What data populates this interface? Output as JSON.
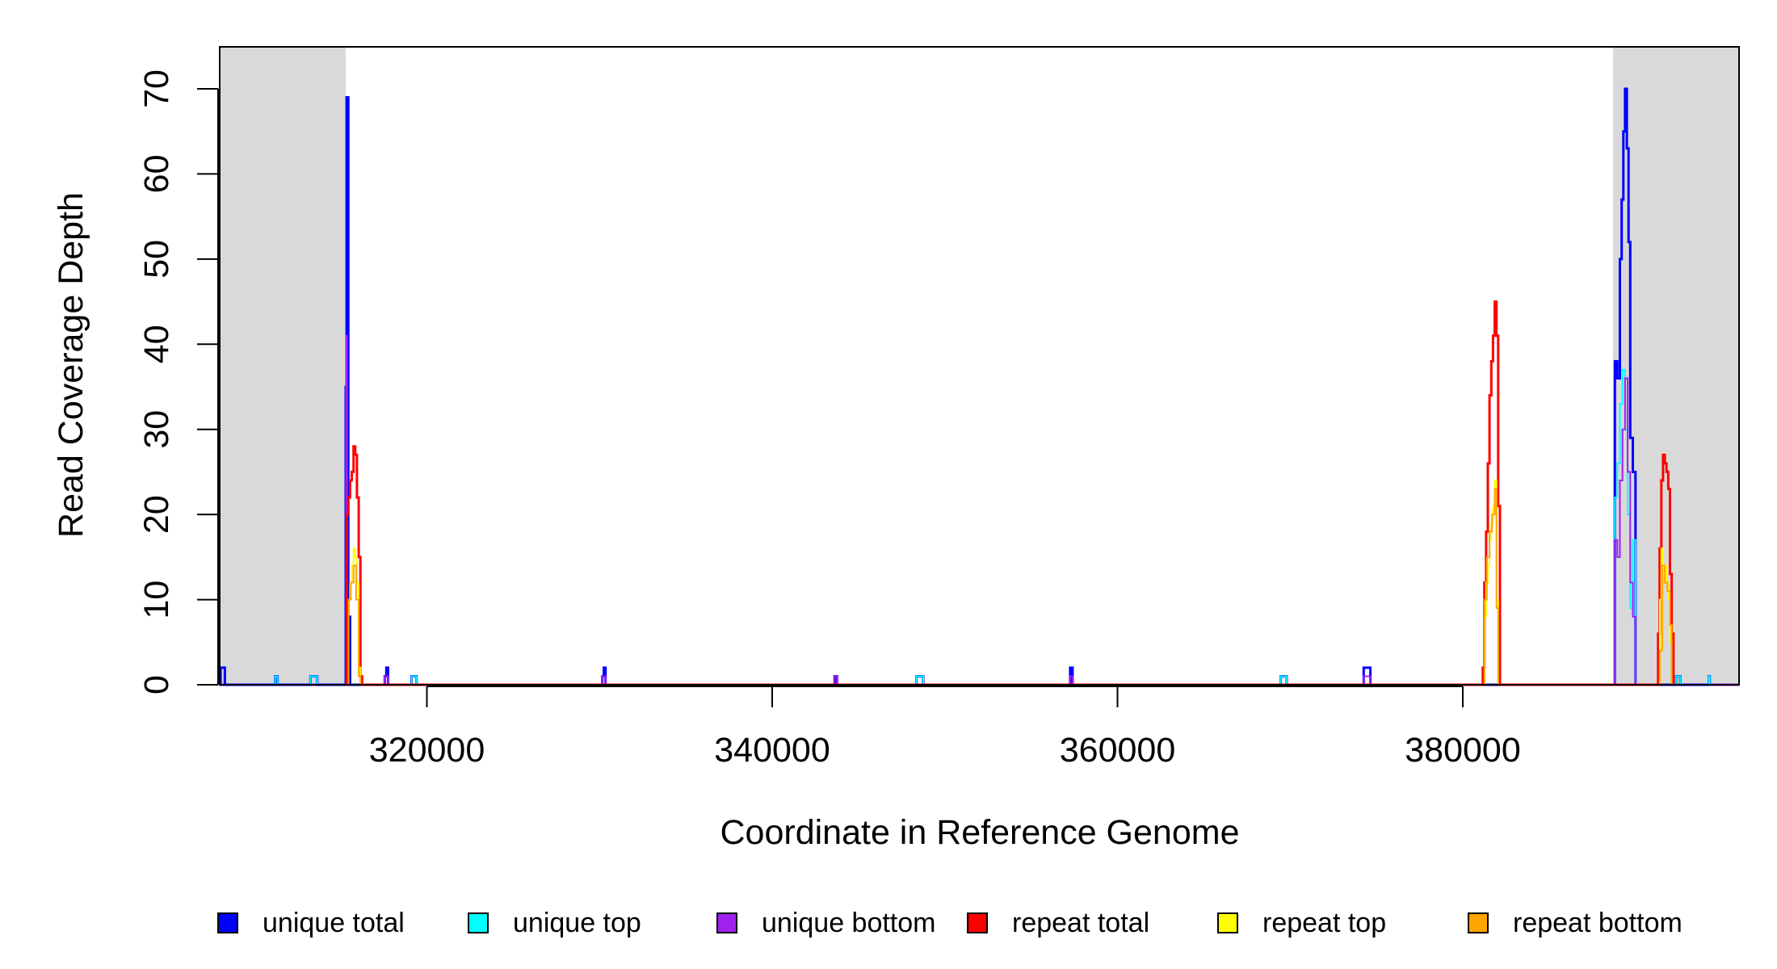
{
  "chart_data": {
    "type": "line",
    "title": "",
    "xlabel": "Coordinate in Reference Genome",
    "ylabel": "Read Coverage Depth",
    "xlim": [
      308000,
      396000
    ],
    "ylim": [
      0,
      75
    ],
    "x_ticks": [
      320000,
      340000,
      360000,
      380000
    ],
    "x_tick_labels": [
      "320000",
      "340000",
      "360000",
      "380000"
    ],
    "y_ticks": [
      0,
      10,
      20,
      30,
      40,
      50,
      60,
      70
    ],
    "y_tick_labels": [
      "0",
      "10",
      "20",
      "30",
      "40",
      "50",
      "60",
      "70"
    ],
    "grid": false,
    "legend_position": "bottom",
    "shaded_regions": [
      {
        "x0": 308000,
        "x1": 315300,
        "color": "#d9d9d9"
      },
      {
        "x0": 388700,
        "x1": 396000,
        "color": "#d9d9d9"
      }
    ],
    "series": [
      {
        "name": "unique total",
        "color": "#0000ff",
        "width": 3,
        "points": [
          [
            308000,
            0
          ],
          [
            308050,
            2
          ],
          [
            308300,
            0
          ],
          [
            311200,
            0
          ],
          [
            311210,
            1
          ],
          [
            311350,
            0
          ],
          [
            313250,
            0
          ],
          [
            313260,
            1
          ],
          [
            313650,
            0
          ],
          [
            315250,
            0
          ],
          [
            315300,
            35
          ],
          [
            315350,
            69
          ],
          [
            315450,
            8
          ],
          [
            315550,
            0
          ],
          [
            317550,
            0
          ],
          [
            317560,
            1
          ],
          [
            317650,
            2
          ],
          [
            317750,
            0
          ],
          [
            319100,
            0
          ],
          [
            319110,
            1
          ],
          [
            319400,
            0
          ],
          [
            330150,
            0
          ],
          [
            330160,
            1
          ],
          [
            330250,
            2
          ],
          [
            330350,
            0
          ],
          [
            343600,
            0
          ],
          [
            343610,
            1
          ],
          [
            343750,
            0
          ],
          [
            348350,
            0
          ],
          [
            348360,
            1
          ],
          [
            348750,
            0
          ],
          [
            357250,
            0
          ],
          [
            357260,
            2
          ],
          [
            357400,
            0
          ],
          [
            369450,
            0
          ],
          [
            369460,
            1
          ],
          [
            369800,
            0
          ],
          [
            374250,
            0
          ],
          [
            374260,
            2
          ],
          [
            374650,
            0
          ],
          [
            388800,
            0
          ],
          [
            388810,
            38
          ],
          [
            388950,
            36
          ],
          [
            389100,
            50
          ],
          [
            389200,
            57
          ],
          [
            389300,
            65
          ],
          [
            389400,
            70
          ],
          [
            389500,
            63
          ],
          [
            389600,
            52
          ],
          [
            389700,
            29
          ],
          [
            389850,
            25
          ],
          [
            390000,
            0
          ],
          [
            392350,
            0
          ],
          [
            392360,
            1
          ],
          [
            392600,
            0
          ],
          [
            394250,
            0
          ],
          [
            394260,
            1
          ],
          [
            394300,
            0
          ]
        ]
      },
      {
        "name": "unique top",
        "color": "#00ffff",
        "width": 2,
        "points": [
          [
            311200,
            0
          ],
          [
            311210,
            1
          ],
          [
            311350,
            0
          ],
          [
            313250,
            0
          ],
          [
            313260,
            1
          ],
          [
            313650,
            0
          ],
          [
            315300,
            0
          ],
          [
            315320,
            8
          ],
          [
            315380,
            5
          ],
          [
            315450,
            0
          ],
          [
            319100,
            0
          ],
          [
            319110,
            1
          ],
          [
            319400,
            0
          ],
          [
            348350,
            0
          ],
          [
            348360,
            1
          ],
          [
            348750,
            0
          ],
          [
            369450,
            0
          ],
          [
            369460,
            1
          ],
          [
            369800,
            0
          ],
          [
            388800,
            0
          ],
          [
            388810,
            22
          ],
          [
            388950,
            26
          ],
          [
            389100,
            33
          ],
          [
            389250,
            37
          ],
          [
            389400,
            30
          ],
          [
            389550,
            20
          ],
          [
            389700,
            9
          ],
          [
            389850,
            17
          ],
          [
            390000,
            0
          ],
          [
            392350,
            0
          ],
          [
            392360,
            1
          ],
          [
            392600,
            0
          ],
          [
            394250,
            0
          ],
          [
            394260,
            1
          ],
          [
            394300,
            0
          ]
        ]
      },
      {
        "name": "unique bottom",
        "color": "#a020f0",
        "width": 2,
        "points": [
          [
            315300,
            0
          ],
          [
            315320,
            41
          ],
          [
            315380,
            8
          ],
          [
            315450,
            0
          ],
          [
            317550,
            0
          ],
          [
            317560,
            1
          ],
          [
            317750,
            0
          ],
          [
            330150,
            0
          ],
          [
            330160,
            1
          ],
          [
            330350,
            0
          ],
          [
            343600,
            0
          ],
          [
            343610,
            1
          ],
          [
            343750,
            0
          ],
          [
            357250,
            0
          ],
          [
            357260,
            1
          ],
          [
            357400,
            0
          ],
          [
            374250,
            0
          ],
          [
            374260,
            1
          ],
          [
            374650,
            0
          ],
          [
            388800,
            0
          ],
          [
            388810,
            17
          ],
          [
            388950,
            15
          ],
          [
            389100,
            24
          ],
          [
            389250,
            30
          ],
          [
            389400,
            36
          ],
          [
            389550,
            25
          ],
          [
            389700,
            12
          ],
          [
            389850,
            8
          ],
          [
            390000,
            0
          ]
        ]
      },
      {
        "name": "repeat total",
        "color": "#ff0000",
        "width": 3,
        "points": [
          [
            315350,
            0
          ],
          [
            315360,
            20
          ],
          [
            315450,
            22
          ],
          [
            315550,
            24
          ],
          [
            315650,
            25
          ],
          [
            315750,
            28
          ],
          [
            315850,
            27
          ],
          [
            315950,
            22
          ],
          [
            316050,
            15
          ],
          [
            316150,
            1
          ],
          [
            316250,
            0
          ],
          [
            381150,
            0
          ],
          [
            381160,
            2
          ],
          [
            381250,
            12
          ],
          [
            381350,
            18
          ],
          [
            381450,
            26
          ],
          [
            381550,
            34
          ],
          [
            381650,
            38
          ],
          [
            381750,
            41
          ],
          [
            381850,
            45
          ],
          [
            381950,
            41
          ],
          [
            382050,
            21
          ],
          [
            382150,
            0
          ],
          [
            391300,
            0
          ],
          [
            391310,
            6
          ],
          [
            391400,
            16
          ],
          [
            391500,
            24
          ],
          [
            391600,
            27
          ],
          [
            391700,
            26
          ],
          [
            391800,
            25
          ],
          [
            391900,
            23
          ],
          [
            392000,
            13
          ],
          [
            392100,
            6
          ],
          [
            392200,
            0
          ]
        ]
      },
      {
        "name": "repeat top",
        "color": "#ffff00",
        "width": 2,
        "points": [
          [
            315450,
            0
          ],
          [
            315460,
            10
          ],
          [
            315550,
            12
          ],
          [
            315650,
            14
          ],
          [
            315750,
            16
          ],
          [
            315850,
            15
          ],
          [
            315950,
            12
          ],
          [
            316050,
            2
          ],
          [
            316150,
            0
          ],
          [
            381250,
            0
          ],
          [
            381260,
            8
          ],
          [
            381350,
            12
          ],
          [
            381450,
            14
          ],
          [
            381550,
            17
          ],
          [
            381650,
            19
          ],
          [
            381750,
            21
          ],
          [
            381850,
            24
          ],
          [
            381950,
            10
          ],
          [
            382050,
            0
          ],
          [
            391400,
            0
          ],
          [
            391410,
            10
          ],
          [
            391500,
            16
          ],
          [
            391600,
            13
          ],
          [
            391700,
            14
          ],
          [
            391800,
            12
          ],
          [
            391900,
            10
          ],
          [
            392000,
            5
          ],
          [
            392100,
            0
          ]
        ]
      },
      {
        "name": "repeat bottom",
        "color": "#ffa500",
        "width": 2,
        "points": [
          [
            315450,
            0
          ],
          [
            315460,
            10
          ],
          [
            315600,
            12
          ],
          [
            315750,
            14
          ],
          [
            315900,
            10
          ],
          [
            316050,
            1
          ],
          [
            316150,
            0
          ],
          [
            381250,
            0
          ],
          [
            381260,
            10
          ],
          [
            381400,
            15
          ],
          [
            381550,
            18
          ],
          [
            381700,
            20
          ],
          [
            381850,
            23
          ],
          [
            381950,
            9
          ],
          [
            382050,
            0
          ],
          [
            391400,
            0
          ],
          [
            391410,
            4
          ],
          [
            391550,
            14
          ],
          [
            391700,
            12
          ],
          [
            391850,
            11
          ],
          [
            392000,
            7
          ],
          [
            392100,
            0
          ]
        ]
      }
    ]
  }
}
